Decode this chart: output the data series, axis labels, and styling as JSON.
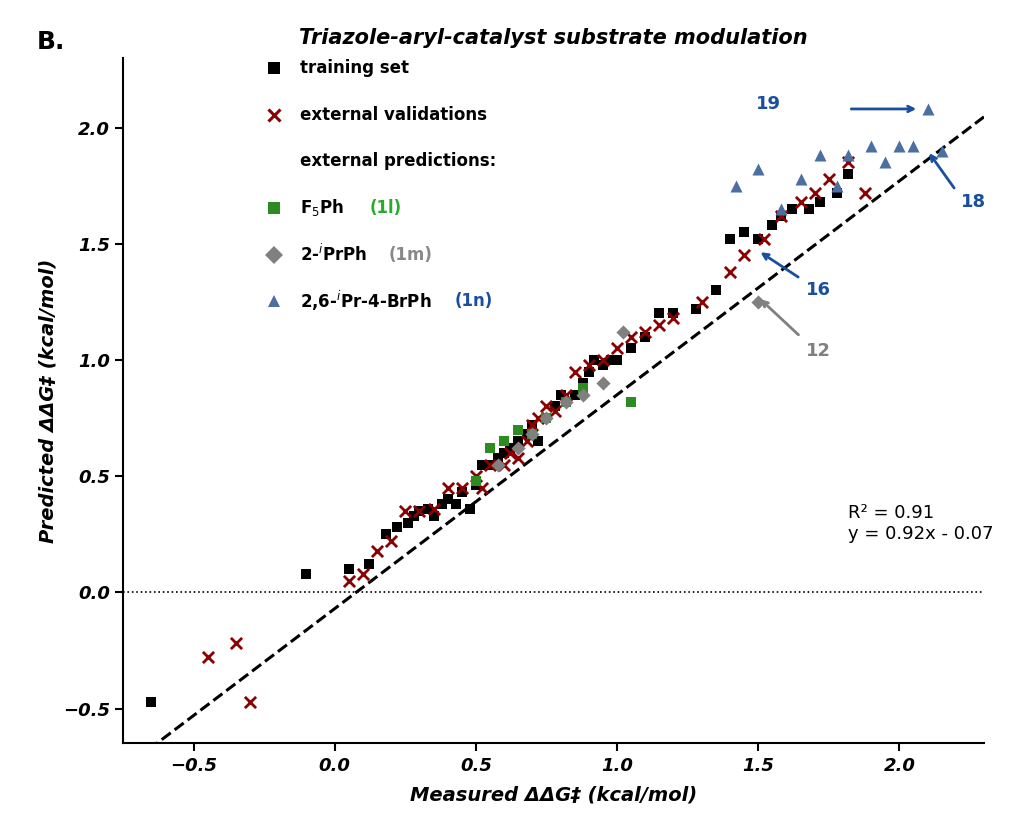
{
  "title": "Triazole-aryl-catalyst substrate modulation",
  "xlabel": "Measured ΔΔG‡ (kcal/mol)",
  "ylabel": "Predicted ΔΔG‡ (kcal/mol)",
  "panel_label": "B.",
  "xlim": [
    -0.75,
    2.3
  ],
  "ylim": [
    -0.65,
    2.3
  ],
  "xticks": [
    -0.5,
    0.0,
    0.5,
    1.0,
    1.5,
    2.0
  ],
  "yticks": [
    -0.5,
    0.0,
    0.5,
    1.0,
    1.5,
    2.0
  ],
  "fit_slope": 0.92,
  "fit_intercept": -0.07,
  "fit_label_line1": "R² = 0.91",
  "fit_label_line2": "y = 0.92x - 0.07",
  "training_x": [
    -0.65,
    -0.1,
    0.05,
    0.12,
    0.18,
    0.22,
    0.26,
    0.28,
    0.3,
    0.33,
    0.35,
    0.38,
    0.4,
    0.43,
    0.45,
    0.48,
    0.5,
    0.52,
    0.55,
    0.58,
    0.6,
    0.62,
    0.65,
    0.68,
    0.7,
    0.72,
    0.75,
    0.78,
    0.8,
    0.82,
    0.85,
    0.88,
    0.9,
    0.92,
    0.95,
    0.98,
    1.0,
    1.05,
    1.1,
    1.15,
    1.2,
    1.28,
    1.35,
    1.4,
    1.45,
    1.5,
    1.55,
    1.58,
    1.62,
    1.68,
    1.72,
    1.78,
    1.82
  ],
  "training_y": [
    -0.47,
    0.08,
    0.1,
    0.12,
    0.25,
    0.28,
    0.3,
    0.33,
    0.35,
    0.36,
    0.33,
    0.38,
    0.4,
    0.38,
    0.43,
    0.36,
    0.46,
    0.55,
    0.55,
    0.58,
    0.6,
    0.62,
    0.65,
    0.68,
    0.72,
    0.65,
    0.75,
    0.8,
    0.85,
    0.82,
    0.85,
    0.9,
    0.95,
    1.0,
    0.98,
    1.0,
    1.0,
    1.05,
    1.1,
    1.2,
    1.2,
    1.22,
    1.3,
    1.52,
    1.55,
    1.52,
    1.58,
    1.62,
    1.65,
    1.65,
    1.68,
    1.72,
    1.8
  ],
  "ext_val_x": [
    -0.45,
    -0.35,
    -0.3,
    0.05,
    0.1,
    0.15,
    0.2,
    0.25,
    0.3,
    0.35,
    0.4,
    0.45,
    0.5,
    0.52,
    0.55,
    0.6,
    0.62,
    0.65,
    0.68,
    0.7,
    0.72,
    0.75,
    0.78,
    0.82,
    0.85,
    0.9,
    0.95,
    1.0,
    1.05,
    1.1,
    1.15,
    1.2,
    1.3,
    1.4,
    1.45,
    1.52,
    1.58,
    1.65,
    1.7,
    1.75,
    1.82,
    1.88
  ],
  "ext_val_y": [
    -0.28,
    -0.22,
    -0.47,
    0.05,
    0.08,
    0.18,
    0.22,
    0.35,
    0.35,
    0.36,
    0.45,
    0.45,
    0.5,
    0.45,
    0.55,
    0.55,
    0.6,
    0.58,
    0.65,
    0.72,
    0.75,
    0.8,
    0.78,
    0.85,
    0.95,
    0.98,
    1.0,
    1.05,
    1.1,
    1.12,
    1.15,
    1.18,
    1.25,
    1.38,
    1.45,
    1.52,
    1.62,
    1.68,
    1.72,
    1.78,
    1.85,
    1.72
  ],
  "f5ph_x": [
    0.5,
    0.55,
    0.6,
    0.65,
    0.7,
    0.75,
    0.82,
    0.88,
    1.05
  ],
  "f5ph_y": [
    0.48,
    0.62,
    0.65,
    0.7,
    0.68,
    0.75,
    0.82,
    0.88,
    0.82
  ],
  "iprph_x": [
    0.58,
    0.65,
    0.7,
    0.75,
    0.82,
    0.88,
    0.95,
    1.02,
    1.5
  ],
  "iprph_y": [
    0.55,
    0.62,
    0.68,
    0.75,
    0.82,
    0.85,
    0.9,
    1.12,
    1.25
  ],
  "brph_x": [
    1.42,
    1.5,
    1.58,
    1.65,
    1.72,
    1.78,
    1.82,
    1.9,
    1.95,
    2.0,
    2.05,
    2.1,
    2.15
  ],
  "brph_y": [
    1.75,
    1.82,
    1.65,
    1.78,
    1.88,
    1.75,
    1.88,
    1.92,
    1.85,
    1.92,
    1.92,
    2.08,
    1.9
  ],
  "color_training": "#000000",
  "color_ext_val": "#8B0000",
  "color_f5ph": "#2E8B22",
  "color_iprph": "#808080",
  "color_brph": "#4a6fa0",
  "color_annot_blue": "#1a4fa0",
  "color_annot_gray": "#808080",
  "color_green_label": "#2aaa2a",
  "color_gray_label": "#888888",
  "color_blue_label": "#1a4fa0"
}
